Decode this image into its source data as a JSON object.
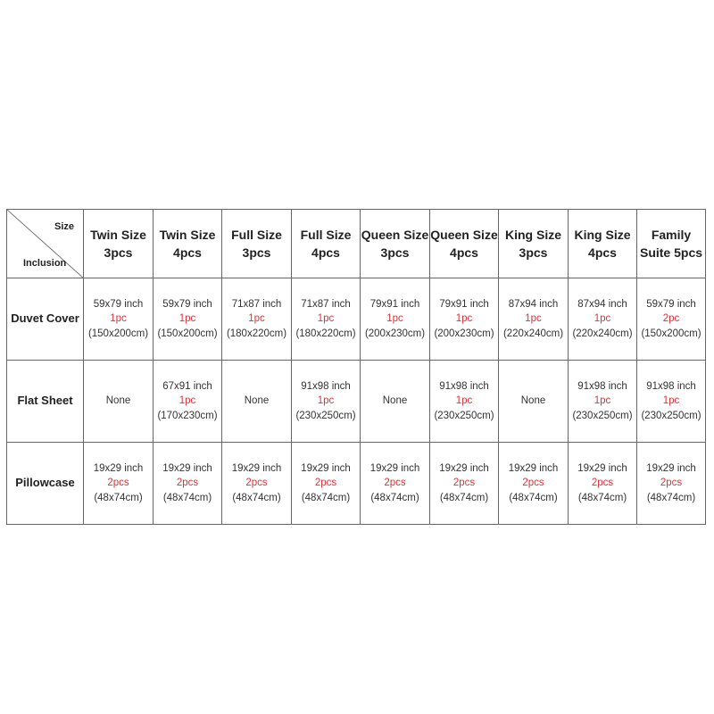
{
  "corner": {
    "top_label": "Size",
    "bottom_label": "Inclusion"
  },
  "columns": [
    "Twin Size 3pcs",
    "Twin Size 4pcs",
    "Full Size 3pcs",
    "Full Size 4pcs",
    "Queen Size 3pcs",
    "Queen Size 4pcs",
    "King Size 3pcs",
    "King Size 4pcs",
    "Family Suite 5pcs"
  ],
  "rows": [
    {
      "label": "Duvet Cover",
      "cells": [
        {
          "inch": "59x79 inch",
          "qty": "1pc",
          "cm": "(150x200cm)"
        },
        {
          "inch": "59x79 inch",
          "qty": "1pc",
          "cm": "(150x200cm)"
        },
        {
          "inch": "71x87 inch",
          "qty": "1pc",
          "cm": "(180x220cm)"
        },
        {
          "inch": "71x87 inch",
          "qty": "1pc",
          "cm": "(180x220cm)"
        },
        {
          "inch": "79x91 inch",
          "qty": "1pc",
          "cm": "(200x230cm)"
        },
        {
          "inch": "79x91 inch",
          "qty": "1pc",
          "cm": "(200x230cm)"
        },
        {
          "inch": "87x94 inch",
          "qty": "1pc",
          "cm": "(220x240cm)"
        },
        {
          "inch": "87x94 inch",
          "qty": "1pc",
          "cm": "(220x240cm)"
        },
        {
          "inch": "59x79 inch",
          "qty": "2pc",
          "cm": "(150x200cm)"
        }
      ]
    },
    {
      "label": "Flat Sheet",
      "cells": [
        {
          "none": "None"
        },
        {
          "inch": "67x91 inch",
          "qty": "1pc",
          "cm": "(170x230cm)"
        },
        {
          "none": "None"
        },
        {
          "inch": "91x98 inch",
          "qty": "1pc",
          "cm": "(230x250cm)"
        },
        {
          "none": "None"
        },
        {
          "inch": "91x98 inch",
          "qty": "1pc",
          "cm": "(230x250cm)"
        },
        {
          "none": "None"
        },
        {
          "inch": "91x98 inch",
          "qty": "1pc",
          "cm": "(230x250cm)"
        },
        {
          "inch": "91x98 inch",
          "qty": "1pc",
          "cm": "(230x250cm)"
        }
      ]
    },
    {
      "label": "Pillowcase",
      "cells": [
        {
          "inch": "19x29 inch",
          "qty": "2pcs",
          "cm": "(48x74cm)"
        },
        {
          "inch": "19x29 inch",
          "qty": "2pcs",
          "cm": "(48x74cm)"
        },
        {
          "inch": "19x29 inch",
          "qty": "2pcs",
          "cm": "(48x74cm)"
        },
        {
          "inch": "19x29 inch",
          "qty": "2pcs",
          "cm": "(48x74cm)"
        },
        {
          "inch": "19x29 inch",
          "qty": "2pcs",
          "cm": "(48x74cm)"
        },
        {
          "inch": "19x29 inch",
          "qty": "2pcs",
          "cm": "(48x74cm)"
        },
        {
          "inch": "19x29 inch",
          "qty": "2pcs",
          "cm": "(48x74cm)"
        },
        {
          "inch": "19x29 inch",
          "qty": "2pcs",
          "cm": "(48x74cm)"
        },
        {
          "inch": "19x29 inch",
          "qty": "2pcs",
          "cm": "(48x74cm)"
        }
      ]
    }
  ],
  "colors": {
    "quantity": "#d9333a",
    "border": "#666666"
  }
}
